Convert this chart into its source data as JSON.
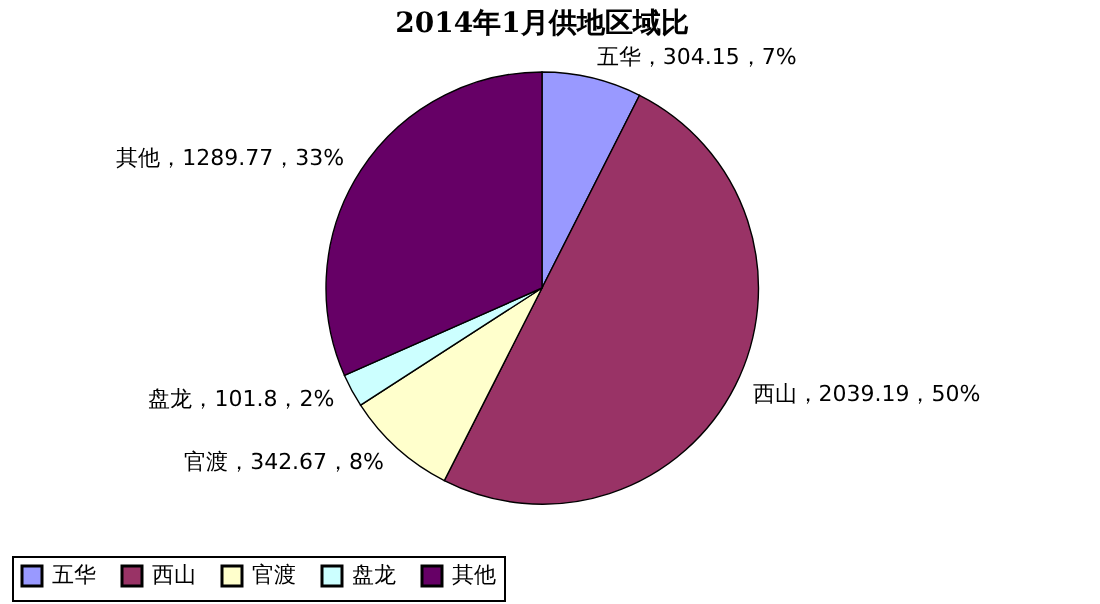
{
  "chart_data": {
    "type": "pie",
    "title": "2014年1月供地区域比",
    "categories": [
      "五华",
      "西山",
      "官渡",
      "盘龙",
      "其他"
    ],
    "values": [
      304.15,
      2039.19,
      342.67,
      101.8,
      1289.77
    ],
    "value_labels": [
      "五华，304.15，7%",
      "西山，2039.19，50%",
      "官渡，342.67，8%",
      "盘龙，101.8，2%",
      "其他，1289.77，33%"
    ],
    "colors": [
      "#9999ff",
      "#993366",
      "#ffffcc",
      "#ccffff",
      "#660066"
    ],
    "legend": "bottom"
  }
}
